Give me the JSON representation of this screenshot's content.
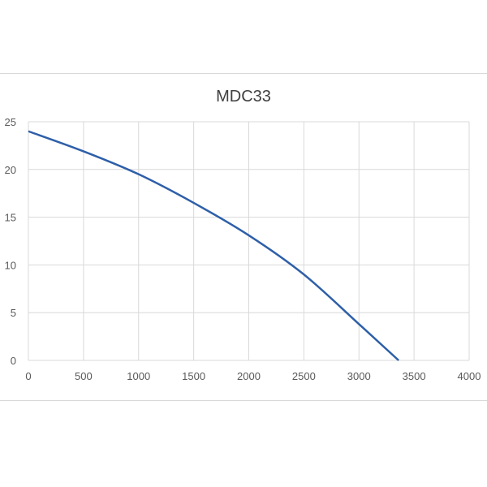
{
  "chart_data": {
    "type": "line",
    "title": "MDC33",
    "xlabel": "",
    "ylabel": "",
    "xlim": [
      0,
      4000
    ],
    "ylim": [
      0,
      25
    ],
    "xticks": [
      0,
      500,
      1000,
      1500,
      2000,
      2500,
      3000,
      3500,
      4000
    ],
    "yticks": [
      0,
      5,
      10,
      15,
      20,
      25
    ],
    "grid": true,
    "series": [
      {
        "name": "MDC33",
        "color": "#2e5fa8",
        "x": [
          0,
          500,
          1000,
          1500,
          2000,
          2500,
          3000,
          3360
        ],
        "y": [
          24,
          21.9,
          19.5,
          16.5,
          13.1,
          9.0,
          3.8,
          0
        ]
      }
    ]
  }
}
